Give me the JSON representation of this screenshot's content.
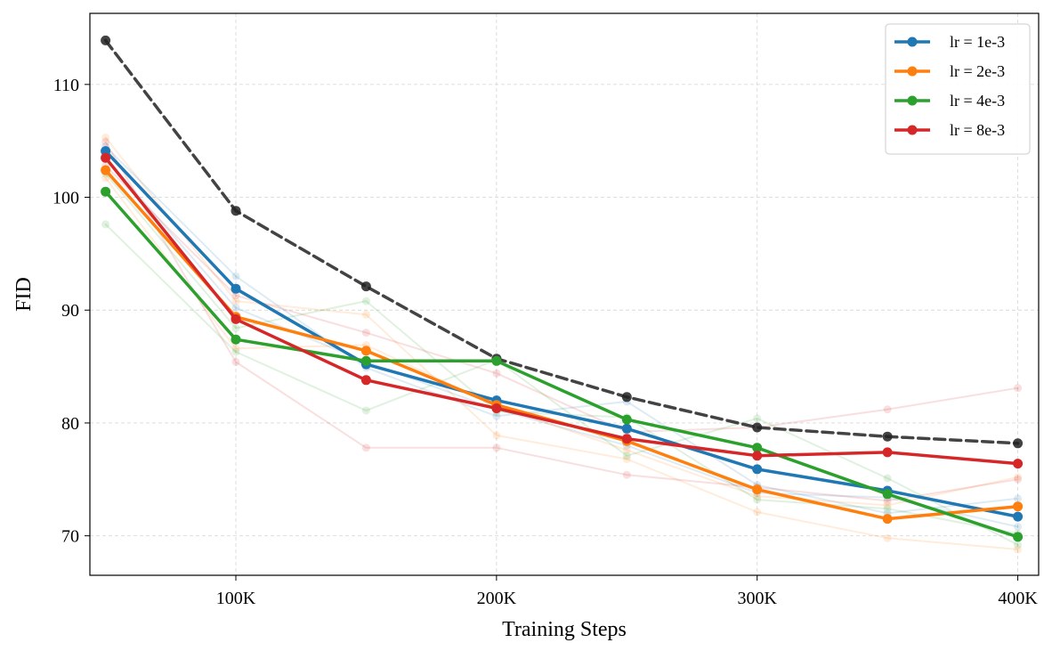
{
  "chart_data": {
    "type": "line",
    "title": "",
    "xlabel": "Training Steps",
    "ylabel": "FID",
    "x": [
      50000,
      100000,
      150000,
      200000,
      250000,
      300000,
      350000,
      400000
    ],
    "xlim": [
      44000,
      408000
    ],
    "ylim": [
      66.5,
      116.3
    ],
    "xticks": [
      {
        "value": 100000,
        "label": "100K"
      },
      {
        "value": 200000,
        "label": "200K"
      },
      {
        "value": 300000,
        "label": "300K"
      },
      {
        "value": 400000,
        "label": "400K"
      }
    ],
    "yticks": [
      {
        "value": 70,
        "label": "70"
      },
      {
        "value": 80,
        "label": "80"
      },
      {
        "value": 90,
        "label": "90"
      },
      {
        "value": 100,
        "label": "100"
      },
      {
        "value": 110,
        "label": "110"
      }
    ],
    "grid": true,
    "legend_position": "top-right",
    "series": [
      {
        "name": "lr = 1e-3",
        "color": "#1f77b4",
        "values": [
          104.1,
          91.9,
          85.2,
          82.0,
          79.5,
          75.9,
          74.0,
          71.7
        ]
      },
      {
        "name": "lr = 2e-3",
        "color": "#ff7f0e",
        "values": [
          102.4,
          89.4,
          86.4,
          81.6,
          78.4,
          74.1,
          71.5,
          72.6
        ]
      },
      {
        "name": "lr = 4e-3",
        "color": "#2ca02c",
        "values": [
          100.5,
          87.4,
          85.5,
          85.5,
          80.3,
          77.8,
          73.7,
          69.9
        ]
      },
      {
        "name": "lr = 8e-3",
        "color": "#d62728",
        "values": [
          103.5,
          89.2,
          83.8,
          81.3,
          78.6,
          77.1,
          77.4,
          76.4
        ]
      },
      {
        "color": "#222222",
        "dashed": true,
        "values": [
          113.9,
          98.8,
          92.1,
          85.7,
          82.3,
          79.6,
          78.8,
          78.2
        ]
      }
    ],
    "faint_runs": [
      {
        "color": "#1f77b4",
        "values": [
          104.5,
          93.0,
          84.9,
          80.6,
          81.9,
          74.5,
          72.0,
          73.3
        ]
      },
      {
        "color": "#1f77b4",
        "values": [
          103.5,
          90.2,
          85.4,
          81.2,
          78.0,
          73.8,
          73.4,
          70.8
        ]
      },
      {
        "color": "#ff7f0e",
        "values": [
          105.3,
          90.8,
          89.6,
          78.9,
          76.8,
          72.1,
          69.8,
          68.8
        ]
      },
      {
        "color": "#ff7f0e",
        "values": [
          101.7,
          86.6,
          86.9,
          81.5,
          77.6,
          73.5,
          72.7,
          75.2
        ]
      },
      {
        "color": "#2ca02c",
        "values": [
          97.6,
          86.3,
          81.1,
          85.6,
          77.1,
          80.4,
          75.1,
          69.2
        ]
      },
      {
        "color": "#2ca02c",
        "values": [
          102.1,
          88.4,
          90.8,
          81.0,
          80.5,
          73.2,
          72.4,
          70.2
        ]
      },
      {
        "color": "#d62728",
        "values": [
          104.9,
          85.4,
          77.8,
          77.8,
          75.4,
          74.3,
          73.1,
          75.0
        ]
      },
      {
        "color": "#d62728",
        "values": [
          102.8,
          91.3,
          88.0,
          84.4,
          79.2,
          79.6,
          81.2,
          83.1
        ]
      }
    ]
  }
}
